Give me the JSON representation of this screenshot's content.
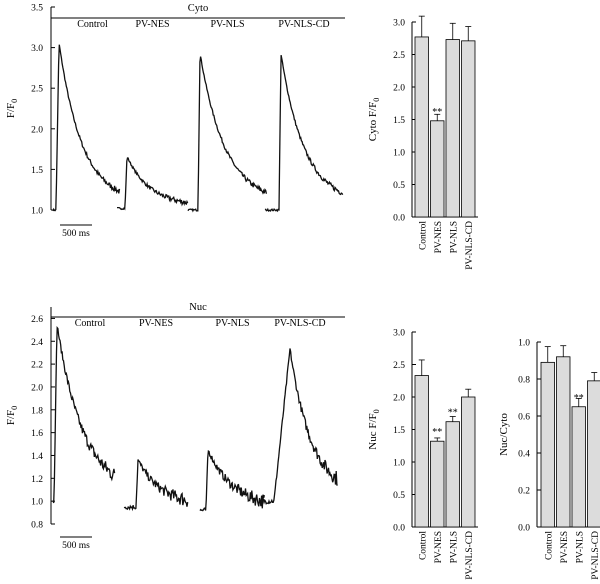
{
  "chart_data": [
    {
      "type": "line",
      "title": "Cyto",
      "ylabel": "F/F",
      "ylabel_sub": "0",
      "ylim": [
        1.0,
        3.5
      ],
      "yticks": [
        1.0,
        1.5,
        2.0,
        2.5,
        3.0,
        3.5
      ],
      "ytick_labels": [
        "1.0",
        "1.5",
        "2.0",
        "2.5",
        "3.0",
        "3.5"
      ],
      "scale_bar_label": "500 ms",
      "traces": [
        {
          "label": "Control",
          "baseline": 1.0,
          "peak": 3.06
        },
        {
          "label": "PV-NES",
          "baseline": 1.02,
          "peak": 1.66
        },
        {
          "label": "PV-NLS",
          "baseline": 1.0,
          "peak": 2.93
        },
        {
          "label": "PV-NLS-CD",
          "baseline": 1.0,
          "peak": 2.92
        }
      ]
    },
    {
      "type": "bar",
      "ylabel": "Cyto F/F",
      "ylabel_sub": "0",
      "categories": [
        "Control",
        "PV-NES",
        "PV-NLS",
        "PV-NLS-CD"
      ],
      "values": [
        2.77,
        1.48,
        2.73,
        2.71
      ],
      "errors": [
        0.32,
        0.1,
        0.25,
        0.22
      ],
      "annotations": [
        "",
        "**",
        "",
        ""
      ],
      "ylim": [
        0.0,
        3.0
      ],
      "yticks": [
        0.0,
        0.5,
        1.0,
        1.5,
        2.0,
        2.5,
        3.0
      ],
      "ytick_labels": [
        "0.0",
        "0.5",
        "1.0",
        "1.5",
        "2.0",
        "2.5",
        "3.0"
      ]
    },
    {
      "type": "line",
      "title": "Nuc",
      "ylabel": "F/F",
      "ylabel_sub": "0",
      "ylim": [
        0.8,
        2.7
      ],
      "yticks": [
        0.8,
        1.0,
        1.2,
        1.4,
        1.6,
        1.8,
        2.0,
        2.2,
        2.4,
        2.6
      ],
      "ytick_labels": [
        "0.8",
        "1.0",
        "1.2",
        "1.4",
        "1.6",
        "1.8",
        "2.0",
        "2.2",
        "2.4",
        "2.6"
      ],
      "scale_bar_label": "500 ms",
      "traces": [
        {
          "label": "Control",
          "baseline": 1.0,
          "peak": 2.55
        },
        {
          "label": "PV-NES",
          "baseline": 0.95,
          "peak": 1.36
        },
        {
          "label": "PV-NLS",
          "baseline": 0.92,
          "peak": 1.45
        },
        {
          "label": "PV-NLS-CD",
          "baseline": 1.0,
          "peak": 2.33
        }
      ]
    },
    {
      "type": "bar",
      "ylabel": "Nuc F/F",
      "ylabel_sub": "0",
      "categories": [
        "Control",
        "PV-NES",
        "PV-NLS",
        "PV-NLS-CD"
      ],
      "values": [
        2.33,
        1.32,
        1.62,
        2.0
      ],
      "errors": [
        0.24,
        0.05,
        0.08,
        0.12
      ],
      "annotations": [
        "",
        "**",
        "**",
        ""
      ],
      "ylim": [
        0.0,
        3.0
      ],
      "yticks": [
        0.0,
        0.5,
        1.0,
        1.5,
        2.0,
        2.5,
        3.0
      ],
      "ytick_labels": [
        "0.0",
        "0.5",
        "1.0",
        "1.5",
        "2.0",
        "2.5",
        "3.0"
      ]
    },
    {
      "type": "bar",
      "ylabel": "Nuc/Cyto",
      "categories": [
        "Control",
        "PV-NES",
        "PV-NLS",
        "PV-NLS-CD"
      ],
      "values": [
        0.89,
        0.92,
        0.65,
        0.79
      ],
      "errors": [
        0.085,
        0.06,
        0.045,
        0.045
      ],
      "annotations": [
        "",
        "",
        "**",
        ""
      ],
      "ylim": [
        0.0,
        1.0
      ],
      "yticks": [
        0.0,
        0.2,
        0.4,
        0.6,
        0.8,
        1.0
      ],
      "ytick_labels": [
        "0.0",
        "0.2",
        "0.4",
        "0.6",
        "0.8",
        "1.0"
      ]
    }
  ]
}
